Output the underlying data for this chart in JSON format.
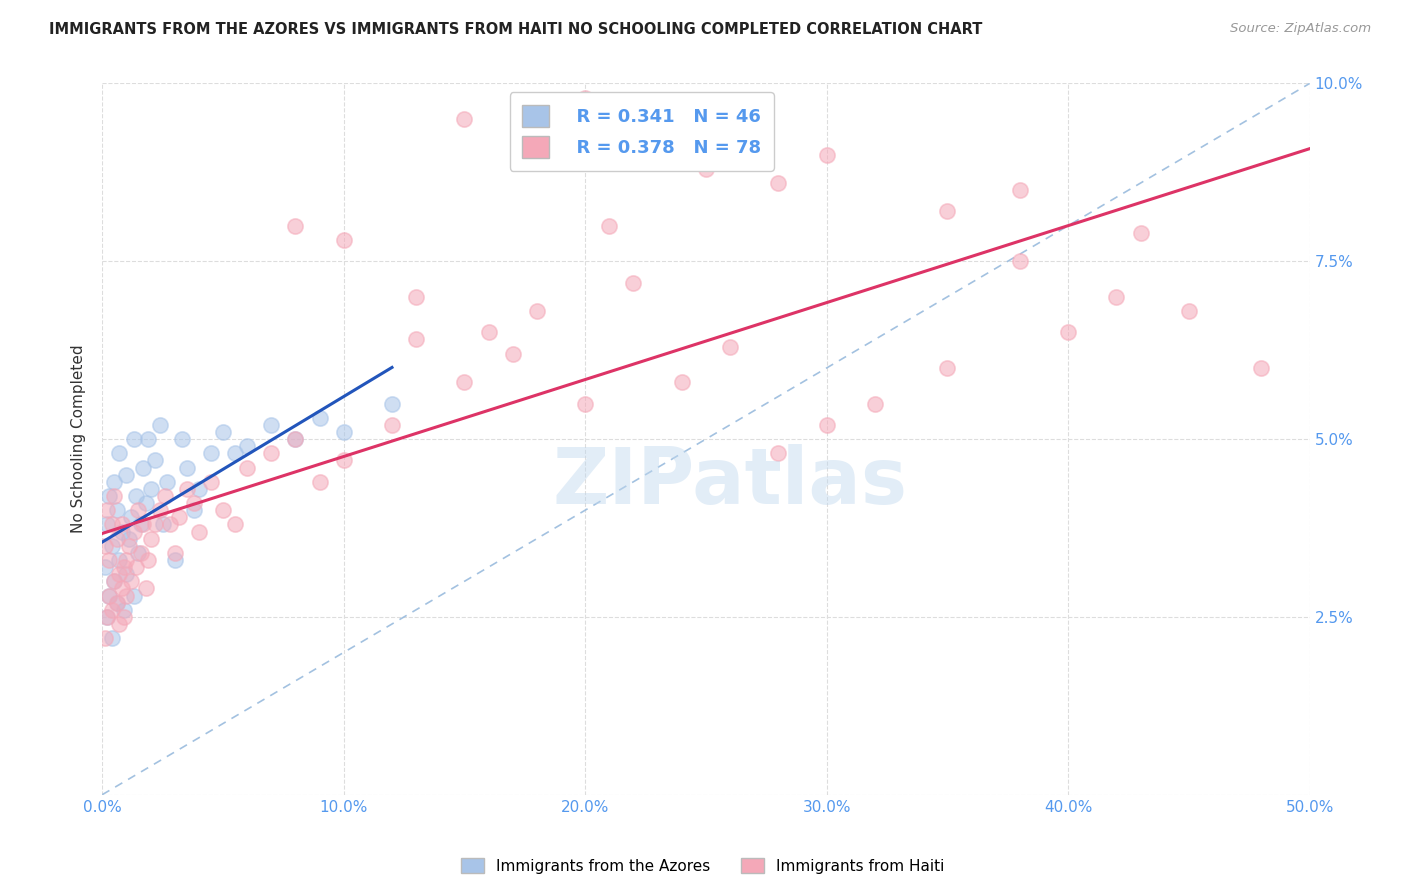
{
  "title": "IMMIGRANTS FROM THE AZORES VS IMMIGRANTS FROM HAITI NO SCHOOLING COMPLETED CORRELATION CHART",
  "source": "Source: ZipAtlas.com",
  "ylabel": "No Schooling Completed",
  "xlim": [
    0.0,
    0.5
  ],
  "ylim": [
    0.0,
    0.1
  ],
  "xtick_vals": [
    0.0,
    0.1,
    0.2,
    0.3,
    0.4,
    0.5
  ],
  "xtick_labels": [
    "0.0%",
    "10.0%",
    "20.0%",
    "30.0%",
    "40.0%",
    "50.0%"
  ],
  "ytick_vals": [
    0.0,
    0.025,
    0.05,
    0.075,
    0.1
  ],
  "ytick_labels": [
    "",
    "2.5%",
    "5.0%",
    "7.5%",
    "10.0%"
  ],
  "legend_r1": "R = 0.341",
  "legend_n1": "N = 46",
  "legend_r2": "R = 0.378",
  "legend_n2": "N = 78",
  "color_azores": "#a8c4e8",
  "color_haiti": "#f4a8b8",
  "line_color_azores": "#2255bb",
  "line_color_haiti": "#dd3366",
  "line_color_diagonal": "#99bbdd",
  "watermark": "ZIPatlas",
  "tick_color": "#5599ee",
  "grid_color": "#dddddd",
  "azores_x": [
    0.001,
    0.002,
    0.002,
    0.003,
    0.003,
    0.004,
    0.004,
    0.005,
    0.005,
    0.006,
    0.006,
    0.007,
    0.007,
    0.008,
    0.009,
    0.01,
    0.01,
    0.011,
    0.012,
    0.013,
    0.013,
    0.014,
    0.015,
    0.016,
    0.017,
    0.018,
    0.019,
    0.02,
    0.022,
    0.024,
    0.025,
    0.027,
    0.03,
    0.033,
    0.035,
    0.038,
    0.04,
    0.045,
    0.05,
    0.055,
    0.06,
    0.07,
    0.08,
    0.09,
    0.1,
    0.12
  ],
  "azores_y": [
    0.032,
    0.025,
    0.038,
    0.028,
    0.042,
    0.022,
    0.035,
    0.03,
    0.044,
    0.027,
    0.04,
    0.033,
    0.048,
    0.037,
    0.026,
    0.031,
    0.045,
    0.036,
    0.039,
    0.028,
    0.05,
    0.042,
    0.034,
    0.038,
    0.046,
    0.041,
    0.05,
    0.043,
    0.047,
    0.052,
    0.038,
    0.044,
    0.033,
    0.05,
    0.046,
    0.04,
    0.043,
    0.048,
    0.051,
    0.048,
    0.049,
    0.052,
    0.05,
    0.053,
    0.051,
    0.055
  ],
  "haiti_x": [
    0.001,
    0.001,
    0.002,
    0.002,
    0.003,
    0.003,
    0.004,
    0.004,
    0.005,
    0.005,
    0.006,
    0.006,
    0.007,
    0.007,
    0.008,
    0.008,
    0.009,
    0.009,
    0.01,
    0.01,
    0.011,
    0.012,
    0.013,
    0.014,
    0.015,
    0.016,
    0.017,
    0.018,
    0.019,
    0.02,
    0.022,
    0.024,
    0.026,
    0.028,
    0.03,
    0.032,
    0.035,
    0.038,
    0.04,
    0.045,
    0.05,
    0.055,
    0.06,
    0.07,
    0.08,
    0.09,
    0.1,
    0.12,
    0.13,
    0.15,
    0.17,
    0.18,
    0.2,
    0.22,
    0.24,
    0.26,
    0.28,
    0.3,
    0.32,
    0.35,
    0.38,
    0.4,
    0.42,
    0.45,
    0.48,
    0.15,
    0.2,
    0.25,
    0.3,
    0.38,
    0.08,
    0.1,
    0.13,
    0.16,
    0.21,
    0.28,
    0.35,
    0.43
  ],
  "haiti_y": [
    0.022,
    0.035,
    0.025,
    0.04,
    0.028,
    0.033,
    0.026,
    0.038,
    0.03,
    0.042,
    0.027,
    0.036,
    0.024,
    0.031,
    0.029,
    0.038,
    0.032,
    0.025,
    0.033,
    0.028,
    0.035,
    0.03,
    0.037,
    0.032,
    0.04,
    0.034,
    0.038,
    0.029,
    0.033,
    0.036,
    0.038,
    0.04,
    0.042,
    0.038,
    0.034,
    0.039,
    0.043,
    0.041,
    0.037,
    0.044,
    0.04,
    0.038,
    0.046,
    0.048,
    0.05,
    0.044,
    0.047,
    0.052,
    0.064,
    0.058,
    0.062,
    0.068,
    0.055,
    0.072,
    0.058,
    0.063,
    0.048,
    0.052,
    0.055,
    0.06,
    0.075,
    0.065,
    0.07,
    0.068,
    0.06,
    0.095,
    0.098,
    0.088,
    0.09,
    0.085,
    0.08,
    0.078,
    0.07,
    0.065,
    0.08,
    0.086,
    0.082,
    0.079
  ]
}
